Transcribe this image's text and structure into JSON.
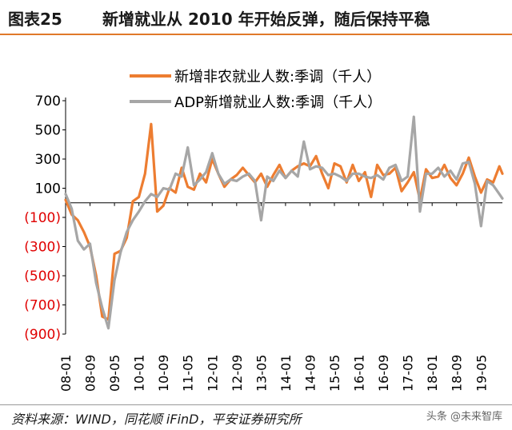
{
  "header": {
    "figure_label": "图表25",
    "title": "新增就业从 2010 年开始反弹，随后保持平稳"
  },
  "footer": {
    "source": "资料来源：WIND，同花顺 iFinD，平安证券研究所",
    "watermark": "头条 @未来智库"
  },
  "chart_data": {
    "type": "line",
    "title": "",
    "xlabel": "",
    "ylabel": "",
    "ylim": [
      -900,
      700
    ],
    "yticks": [
      700,
      500,
      300,
      100,
      -100,
      -300,
      -500,
      -700,
      -900
    ],
    "ytick_labels": [
      "700",
      "500",
      "300",
      "100",
      "(100)",
      "(300)",
      "(500)",
      "(700)",
      "(900)"
    ],
    "negative_tick_color": "#e00000",
    "x_tick_labels": [
      "08-01",
      "08-09",
      "09-05",
      "10-01",
      "10-09",
      "11-05",
      "12-01",
      "12-09",
      "13-05",
      "14-01",
      "14-09",
      "15-05",
      "16-01",
      "16-09",
      "17-05",
      "18-01",
      "18-09",
      "19-05"
    ],
    "x_range": [
      "2008-01",
      "2019-12"
    ],
    "legend_position": "top",
    "series": [
      {
        "name": "新增非农就业人数:季调（千人）",
        "color": "#ed7d31",
        "points": [
          [
            "2008-01",
            20
          ],
          [
            "2008-03",
            -80
          ],
          [
            "2008-05",
            -120
          ],
          [
            "2008-07",
            -200
          ],
          [
            "2008-09",
            -300
          ],
          [
            "2008-11",
            -500
          ],
          [
            "2009-01",
            -780
          ],
          [
            "2009-03",
            -800
          ],
          [
            "2009-05",
            -350
          ],
          [
            "2009-07",
            -330
          ],
          [
            "2009-09",
            -240
          ],
          [
            "2009-11",
            10
          ],
          [
            "2010-01",
            40
          ],
          [
            "2010-03",
            200
          ],
          [
            "2010-05",
            540
          ],
          [
            "2010-07",
            -60
          ],
          [
            "2010-09",
            -20
          ],
          [
            "2010-11",
            100
          ],
          [
            "2011-01",
            70
          ],
          [
            "2011-03",
            240
          ],
          [
            "2011-05",
            110
          ],
          [
            "2011-07",
            90
          ],
          [
            "2011-09",
            200
          ],
          [
            "2011-11",
            140
          ],
          [
            "2012-01",
            300
          ],
          [
            "2012-03",
            200
          ],
          [
            "2012-05",
            110
          ],
          [
            "2012-07",
            160
          ],
          [
            "2012-09",
            190
          ],
          [
            "2012-11",
            240
          ],
          [
            "2013-01",
            190
          ],
          [
            "2013-03",
            140
          ],
          [
            "2013-05",
            200
          ],
          [
            "2013-07",
            110
          ],
          [
            "2013-09",
            190
          ],
          [
            "2013-11",
            260
          ],
          [
            "2014-01",
            170
          ],
          [
            "2014-03",
            220
          ],
          [
            "2014-05",
            250
          ],
          [
            "2014-07",
            270
          ],
          [
            "2014-09",
            250
          ],
          [
            "2014-11",
            320
          ],
          [
            "2015-01",
            200
          ],
          [
            "2015-03",
            100
          ],
          [
            "2015-05",
            270
          ],
          [
            "2015-07",
            250
          ],
          [
            "2015-09",
            140
          ],
          [
            "2015-11",
            260
          ],
          [
            "2016-01",
            150
          ],
          [
            "2016-03",
            210
          ],
          [
            "2016-05",
            40
          ],
          [
            "2016-07",
            260
          ],
          [
            "2016-09",
            190
          ],
          [
            "2016-11",
            200
          ],
          [
            "2017-01",
            240
          ],
          [
            "2017-03",
            80
          ],
          [
            "2017-05",
            140
          ],
          [
            "2017-07",
            210
          ],
          [
            "2017-09",
            20
          ],
          [
            "2017-11",
            230
          ],
          [
            "2018-01",
            170
          ],
          [
            "2018-03",
            180
          ],
          [
            "2018-05",
            260
          ],
          [
            "2018-07",
            170
          ],
          [
            "2018-09",
            120
          ],
          [
            "2018-11",
            200
          ],
          [
            "2019-01",
            310
          ],
          [
            "2019-03",
            180
          ],
          [
            "2019-05",
            70
          ],
          [
            "2019-07",
            160
          ],
          [
            "2019-09",
            140
          ],
          [
            "2019-11",
            250
          ],
          [
            "2019-12",
            200
          ]
        ]
      },
      {
        "name": "ADP新增就业人数:季调（千人）",
        "color": "#a6a6a6",
        "points": [
          [
            "2008-01",
            60
          ],
          [
            "2008-03",
            -40
          ],
          [
            "2008-05",
            -260
          ],
          [
            "2008-07",
            -320
          ],
          [
            "2008-09",
            -280
          ],
          [
            "2008-11",
            -550
          ],
          [
            "2009-01",
            -720
          ],
          [
            "2009-03",
            -860
          ],
          [
            "2009-05",
            -530
          ],
          [
            "2009-07",
            -340
          ],
          [
            "2009-09",
            -200
          ],
          [
            "2009-11",
            -120
          ],
          [
            "2010-01",
            -60
          ],
          [
            "2010-03",
            10
          ],
          [
            "2010-05",
            60
          ],
          [
            "2010-07",
            40
          ],
          [
            "2010-09",
            100
          ],
          [
            "2010-11",
            90
          ],
          [
            "2011-01",
            200
          ],
          [
            "2011-03",
            180
          ],
          [
            "2011-05",
            380
          ],
          [
            "2011-07",
            120
          ],
          [
            "2011-09",
            160
          ],
          [
            "2011-11",
            210
          ],
          [
            "2012-01",
            340
          ],
          [
            "2012-03",
            200
          ],
          [
            "2012-05",
            130
          ],
          [
            "2012-07",
            160
          ],
          [
            "2012-09",
            150
          ],
          [
            "2012-11",
            180
          ],
          [
            "2013-01",
            200
          ],
          [
            "2013-03",
            150
          ],
          [
            "2013-05",
            -120
          ],
          [
            "2013-07",
            180
          ],
          [
            "2013-09",
            150
          ],
          [
            "2013-11",
            220
          ],
          [
            "2014-01",
            170
          ],
          [
            "2014-03",
            220
          ],
          [
            "2014-05",
            180
          ],
          [
            "2014-07",
            420
          ],
          [
            "2014-09",
            230
          ],
          [
            "2014-11",
            250
          ],
          [
            "2015-01",
            240
          ],
          [
            "2015-03",
            190
          ],
          [
            "2015-05",
            200
          ],
          [
            "2015-07",
            180
          ],
          [
            "2015-09",
            150
          ],
          [
            "2015-11",
            200
          ],
          [
            "2016-01",
            200
          ],
          [
            "2016-03",
            180
          ],
          [
            "2016-05",
            170
          ],
          [
            "2016-07",
            190
          ],
          [
            "2016-09",
            160
          ],
          [
            "2016-11",
            240
          ],
          [
            "2017-01",
            260
          ],
          [
            "2017-03",
            150
          ],
          [
            "2017-05",
            180
          ],
          [
            "2017-07",
            590
          ],
          [
            "2017-09",
            -60
          ],
          [
            "2017-11",
            200
          ],
          [
            "2018-01",
            200
          ],
          [
            "2018-03",
            240
          ],
          [
            "2018-05",
            180
          ],
          [
            "2018-07",
            220
          ],
          [
            "2018-09",
            160
          ],
          [
            "2018-11",
            270
          ],
          [
            "2019-01",
            280
          ],
          [
            "2019-03",
            130
          ],
          [
            "2019-05",
            -160
          ],
          [
            "2019-07",
            150
          ],
          [
            "2019-09",
            120
          ],
          [
            "2019-11",
            60
          ],
          [
            "2019-12",
            30
          ]
        ]
      }
    ]
  }
}
